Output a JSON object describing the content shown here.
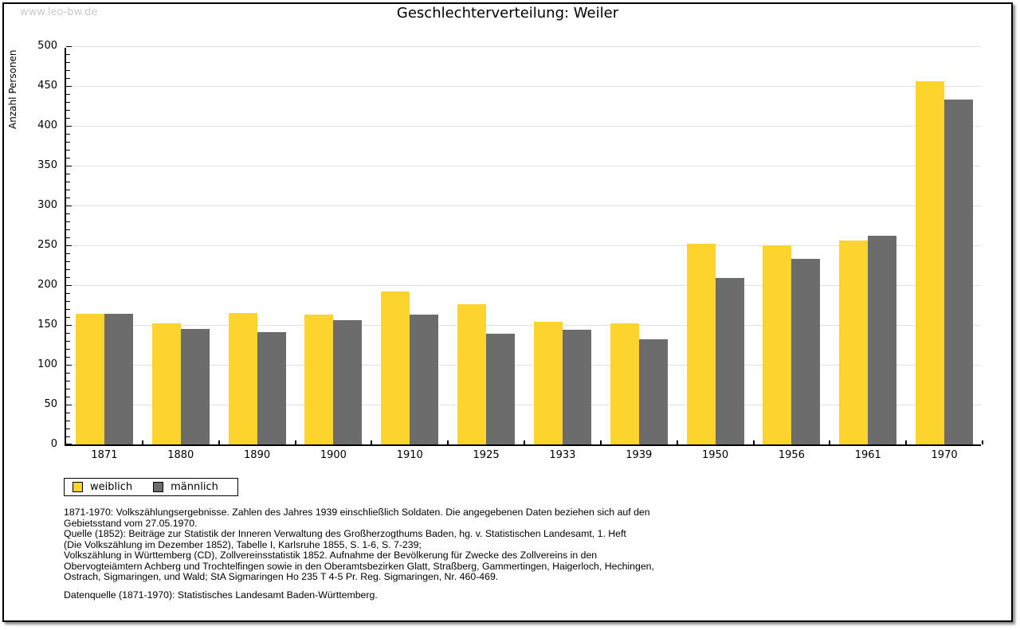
{
  "page": {
    "watermark": "www.leo-bw.de",
    "title": "Geschlechterverteilung: Weiler"
  },
  "chart_data": {
    "type": "bar",
    "title": "Geschlechterverteilung: Weiler",
    "xlabel": "",
    "ylabel": "Anzahl Personen",
    "ylim": [
      0,
      500
    ],
    "ytick_step": 50,
    "y_minor_tick_step": 10,
    "grid": true,
    "legend_position": "below-left",
    "categories": [
      "1871",
      "1880",
      "1890",
      "1900",
      "1910",
      "1925",
      "1933",
      "1939",
      "1950",
      "1956",
      "1961",
      "1970"
    ],
    "series": [
      {
        "name": "weiblich",
        "color": "#FDD42D",
        "values": [
          164,
          152,
          165,
          163,
          192,
          176,
          154,
          152,
          252,
          250,
          256,
          456
        ]
      },
      {
        "name": "männlich",
        "color": "#6C6C6C",
        "values": [
          164,
          145,
          141,
          156,
          163,
          139,
          144,
          132,
          209,
          233,
          262,
          433
        ]
      }
    ]
  },
  "footnotes": [
    "1871-1970: Volkszählungsergebnisse. Zahlen des Jahres 1939 einschließlich Soldaten. Die angegebenen Daten beziehen sich auf den",
    "Gebietsstand vom 27.05.1970.",
    "Quelle (1852): Beiträge zur Statistik der Inneren Verwaltung des Großherzogthums Baden, hg. v. Statistischen Landesamt, 1. Heft",
    "(Die Volkszählung im Dezember 1852), Tabelle I, Karlsruhe 1855, S. 1-6, S. 7-239;",
    "Volkszählung in Württemberg (CD), Zollvereinsstatistik 1852. Aufnahme der Bevölkerung für Zwecke des Zollvereins in den",
    "Obervogteiämtern Achberg und Trochtelfingen sowie in den Oberamtsbezirken Glatt, Straßberg, Gammertingen, Haigerloch, Hechingen,",
    "Ostrach, Sigmaringen, und Wald; StA Sigmaringen Ho 235 T 4-5 Pr. Reg. Sigmaringen, Nr. 460-469."
  ],
  "datasource": "Datenquelle (1871-1970): Statistisches Landesamt Baden-Württemberg.",
  "colors": {
    "female_bar": "#FDD42D",
    "male_bar": "#6C6C6C",
    "gridline": "#E2E2E2",
    "watermark": "#C9C9C9",
    "axis": "#000000",
    "background": "#FFFFFF"
  }
}
